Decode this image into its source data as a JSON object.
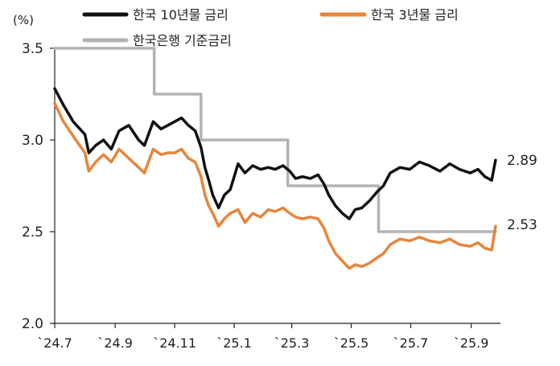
{
  "chart_data": {
    "type": "line",
    "y_unit": "(%)",
    "ylim": [
      2.0,
      3.5
    ],
    "y_ticks": [
      "3.5",
      "3.0",
      "2.5",
      "2.0"
    ],
    "x_ticks": [
      "`24.7",
      "`24.9",
      "`24.11",
      "`25.1",
      "`25.3",
      "`25.5",
      "`25.7",
      "`25.9"
    ],
    "x_range": [
      "2024-07-01",
      "2025-10-01"
    ],
    "legend_placement": "top",
    "grid": false,
    "series": [
      {
        "name": "한국 10년물 금리",
        "color": "#111111",
        "end_label": "2.89",
        "x": [
          "2024-07-01",
          "2024-07-10",
          "2024-07-20",
          "2024-08-01",
          "2024-08-05",
          "2024-08-12",
          "2024-08-20",
          "2024-08-28",
          "2024-09-05",
          "2024-09-15",
          "2024-09-25",
          "2024-10-01",
          "2024-10-10",
          "2024-10-18",
          "2024-10-25",
          "2024-11-01",
          "2024-11-08",
          "2024-11-15",
          "2024-11-22",
          "2024-11-28",
          "2024-12-02",
          "2024-12-06",
          "2024-12-10",
          "2024-12-16",
          "2024-12-22",
          "2024-12-28",
          "2025-01-05",
          "2025-01-12",
          "2025-01-20",
          "2025-01-28",
          "2025-02-05",
          "2025-02-12",
          "2025-02-20",
          "2025-02-27",
          "2025-03-05",
          "2025-03-12",
          "2025-03-20",
          "2025-03-28",
          "2025-04-03",
          "2025-04-08",
          "2025-04-15",
          "2025-04-22",
          "2025-04-29",
          "2025-05-05",
          "2025-05-12",
          "2025-05-20",
          "2025-05-28",
          "2025-06-03",
          "2025-06-10",
          "2025-06-20",
          "2025-06-30",
          "2025-07-10",
          "2025-07-20",
          "2025-07-31",
          "2025-08-10",
          "2025-08-20",
          "2025-08-31",
          "2025-09-08",
          "2025-09-15",
          "2025-09-22",
          "2025-09-26"
        ],
        "values": [
          3.28,
          3.19,
          3.1,
          3.03,
          2.93,
          2.97,
          3.0,
          2.95,
          3.05,
          3.08,
          3.0,
          2.97,
          3.1,
          3.06,
          3.08,
          3.1,
          3.12,
          3.08,
          3.05,
          2.96,
          2.85,
          2.78,
          2.7,
          2.63,
          2.7,
          2.73,
          2.87,
          2.82,
          2.86,
          2.84,
          2.85,
          2.84,
          2.86,
          2.83,
          2.79,
          2.8,
          2.79,
          2.81,
          2.76,
          2.7,
          2.64,
          2.6,
          2.57,
          2.62,
          2.63,
          2.67,
          2.72,
          2.75,
          2.82,
          2.85,
          2.84,
          2.88,
          2.86,
          2.83,
          2.87,
          2.84,
          2.82,
          2.84,
          2.8,
          2.78,
          2.89
        ]
      },
      {
        "name": "한국 3년물 금리",
        "color": "#E8853A",
        "end_label": "2.53",
        "x": [
          "2024-07-01",
          "2024-07-10",
          "2024-07-20",
          "2024-08-01",
          "2024-08-05",
          "2024-08-12",
          "2024-08-20",
          "2024-08-28",
          "2024-09-05",
          "2024-09-15",
          "2024-09-25",
          "2024-10-01",
          "2024-10-10",
          "2024-10-18",
          "2024-10-25",
          "2024-11-01",
          "2024-11-08",
          "2024-11-15",
          "2024-11-22",
          "2024-11-28",
          "2024-12-02",
          "2024-12-06",
          "2024-12-10",
          "2024-12-16",
          "2024-12-22",
          "2024-12-28",
          "2025-01-05",
          "2025-01-12",
          "2025-01-20",
          "2025-01-28",
          "2025-02-05",
          "2025-02-12",
          "2025-02-20",
          "2025-02-27",
          "2025-03-05",
          "2025-03-12",
          "2025-03-20",
          "2025-03-28",
          "2025-04-03",
          "2025-04-08",
          "2025-04-15",
          "2025-04-22",
          "2025-04-29",
          "2025-05-05",
          "2025-05-12",
          "2025-05-20",
          "2025-05-28",
          "2025-06-03",
          "2025-06-10",
          "2025-06-20",
          "2025-06-30",
          "2025-07-10",
          "2025-07-20",
          "2025-07-31",
          "2025-08-10",
          "2025-08-20",
          "2025-08-31",
          "2025-09-08",
          "2025-09-15",
          "2025-09-22",
          "2025-09-26"
        ],
        "values": [
          3.2,
          3.1,
          3.02,
          2.93,
          2.83,
          2.88,
          2.92,
          2.88,
          2.95,
          2.9,
          2.85,
          2.82,
          2.95,
          2.92,
          2.93,
          2.93,
          2.95,
          2.9,
          2.88,
          2.8,
          2.7,
          2.64,
          2.6,
          2.53,
          2.57,
          2.6,
          2.62,
          2.55,
          2.6,
          2.58,
          2.62,
          2.61,
          2.63,
          2.6,
          2.58,
          2.57,
          2.58,
          2.57,
          2.52,
          2.45,
          2.38,
          2.34,
          2.3,
          2.32,
          2.31,
          2.33,
          2.36,
          2.38,
          2.43,
          2.46,
          2.45,
          2.47,
          2.45,
          2.44,
          2.46,
          2.43,
          2.42,
          2.44,
          2.41,
          2.4,
          2.53
        ]
      },
      {
        "name": "한국은행 기준금리",
        "color": "#B3B3B3",
        "step": true,
        "x": [
          "2024-07-01",
          "2024-10-11",
          "2024-11-28",
          "2025-02-25",
          "2025-05-29",
          "2025-09-26"
        ],
        "values": [
          3.5,
          3.25,
          3.0,
          2.75,
          2.5,
          2.5
        ]
      }
    ]
  }
}
